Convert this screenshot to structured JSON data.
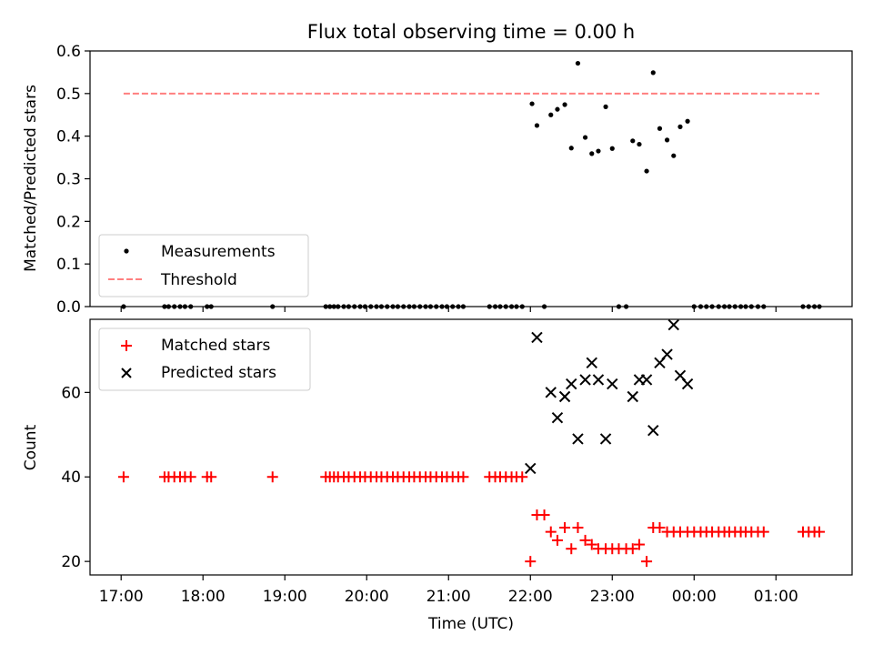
{
  "chart_data": [
    {
      "type": "scatter",
      "title": "Flux total observing time = 0.00 h",
      "xlabel": "",
      "ylabel": "Matched/Predicted stars",
      "ylim": [
        0,
        0.6
      ],
      "yticks": [
        "0.0",
        "0.1",
        "0.2",
        "0.3",
        "0.4",
        "0.5",
        "0.6"
      ],
      "legend_position": "lower-left",
      "series": [
        {
          "name": "Measurements",
          "marker": "dot",
          "color": "#000000",
          "x": [
            17.03,
            17.53,
            17.58,
            17.65,
            17.72,
            17.78,
            17.85,
            18.05,
            18.1,
            18.85,
            19.5,
            19.55,
            19.6,
            19.65,
            19.72,
            19.78,
            19.85,
            19.92,
            19.98,
            20.05,
            20.12,
            20.18,
            20.25,
            20.32,
            20.38,
            20.45,
            20.52,
            20.58,
            20.65,
            20.72,
            20.78,
            20.85,
            20.92,
            20.98,
            21.05,
            21.12,
            21.18,
            21.5,
            21.57,
            21.63,
            21.7,
            21.77,
            21.83,
            21.9,
            22.02,
            22.08,
            22.17,
            22.25,
            22.33,
            22.42,
            22.5,
            22.58,
            22.67,
            22.75,
            22.83,
            22.92,
            23.0,
            23.08,
            23.17,
            23.25,
            23.33,
            23.42,
            23.5,
            23.58,
            23.67,
            23.75,
            23.83,
            23.92,
            24.0,
            24.08,
            24.15,
            24.22,
            24.3,
            24.37,
            24.43,
            24.5,
            24.57,
            24.63,
            24.7,
            24.78,
            24.85,
            25.33,
            25.4,
            25.47,
            25.53
          ],
          "y": [
            0,
            0,
            0,
            0,
            0,
            0,
            0,
            0,
            0,
            0,
            0,
            0,
            0,
            0,
            0,
            0,
            0,
            0,
            0,
            0,
            0,
            0,
            0,
            0,
            0,
            0,
            0,
            0,
            0,
            0,
            0,
            0,
            0,
            0,
            0,
            0,
            0,
            0,
            0,
            0,
            0,
            0,
            0,
            0,
            0.476,
            0.425,
            0.0,
            0.45,
            0.463,
            0.474,
            0.372,
            0.571,
            0.397,
            0.359,
            0.365,
            0.469,
            0.371,
            0.0,
            0.0,
            0.389,
            0.381,
            0.318,
            0.549,
            0.418,
            0.391,
            0.354,
            0.422,
            0.435,
            0,
            0,
            0,
            0,
            0,
            0,
            0,
            0,
            0,
            0,
            0,
            0,
            0,
            0,
            0,
            0,
            0
          ]
        },
        {
          "name": "Threshold",
          "marker": "dashed-line",
          "color": "#ff7f7f",
          "x": [
            17.03,
            25.53
          ],
          "y": [
            0.5,
            0.5
          ]
        }
      ]
    },
    {
      "type": "scatter",
      "title": "",
      "xlabel": "Time (UTC)",
      "ylabel": "Count",
      "xlim": [
        16.62,
        25.93
      ],
      "ylim": [
        16.8,
        77.3
      ],
      "yticks": [
        "20",
        "40",
        "60"
      ],
      "xticks": [
        {
          "value": 17,
          "label": "17:00"
        },
        {
          "value": 18,
          "label": "18:00"
        },
        {
          "value": 19,
          "label": "19:00"
        },
        {
          "value": 20,
          "label": "20:00"
        },
        {
          "value": 21,
          "label": "21:00"
        },
        {
          "value": 22,
          "label": "22:00"
        },
        {
          "value": 23,
          "label": "23:00"
        },
        {
          "value": 24,
          "label": "00:00"
        },
        {
          "value": 25,
          "label": "01:00"
        }
      ],
      "legend_position": "top-left",
      "series": [
        {
          "name": "Matched stars",
          "marker": "plus",
          "color": "#ff0000",
          "x": [
            17.03,
            17.53,
            17.58,
            17.65,
            17.72,
            17.78,
            17.85,
            18.05,
            18.1,
            18.85,
            19.5,
            19.55,
            19.6,
            19.65,
            19.72,
            19.78,
            19.85,
            19.92,
            19.98,
            20.05,
            20.12,
            20.18,
            20.25,
            20.32,
            20.38,
            20.45,
            20.52,
            20.58,
            20.65,
            20.72,
            20.78,
            20.85,
            20.92,
            20.98,
            21.05,
            21.12,
            21.18,
            21.5,
            21.57,
            21.63,
            21.7,
            21.77,
            21.83,
            21.9,
            22.0,
            22.08,
            22.17,
            22.25,
            22.33,
            22.42,
            22.5,
            22.58,
            22.67,
            22.75,
            22.83,
            22.92,
            23.0,
            23.08,
            23.17,
            23.25,
            23.33,
            23.42,
            23.5,
            23.58,
            23.67,
            23.75,
            23.83,
            23.92,
            24.0,
            24.08,
            24.15,
            24.22,
            24.3,
            24.37,
            24.43,
            24.5,
            24.57,
            24.63,
            24.7,
            24.78,
            24.85,
            25.33,
            25.4,
            25.47,
            25.53
          ],
          "y": [
            40,
            40,
            40,
            40,
            40,
            40,
            40,
            40,
            40,
            40,
            40,
            40,
            40,
            40,
            40,
            40,
            40,
            40,
            40,
            40,
            40,
            40,
            40,
            40,
            40,
            40,
            40,
            40,
            40,
            40,
            40,
            40,
            40,
            40,
            40,
            40,
            40,
            40,
            40,
            40,
            40,
            40,
            40,
            40,
            20,
            31,
            31,
            27,
            25,
            28,
            23,
            28,
            25,
            24,
            23,
            23,
            23,
            23,
            23,
            23,
            24,
            20,
            28,
            28,
            27,
            27,
            27,
            27,
            27,
            27,
            27,
            27,
            27,
            27,
            27,
            27,
            27,
            27,
            27,
            27,
            27,
            27,
            27,
            27,
            27
          ]
        },
        {
          "name": "Predicted stars",
          "marker": "x",
          "color": "#000000",
          "x": [
            22.0,
            22.08,
            22.25,
            22.33,
            22.42,
            22.5,
            22.58,
            22.67,
            22.75,
            22.83,
            22.92,
            23.0,
            23.25,
            23.33,
            23.42,
            23.5,
            23.58,
            23.67,
            23.75,
            23.83,
            23.92
          ],
          "y": [
            42,
            73,
            60,
            54,
            59,
            62,
            49,
            63,
            67,
            63,
            49,
            62,
            59,
            63,
            63,
            51,
            67,
            69,
            76,
            64,
            62
          ]
        }
      ]
    }
  ]
}
